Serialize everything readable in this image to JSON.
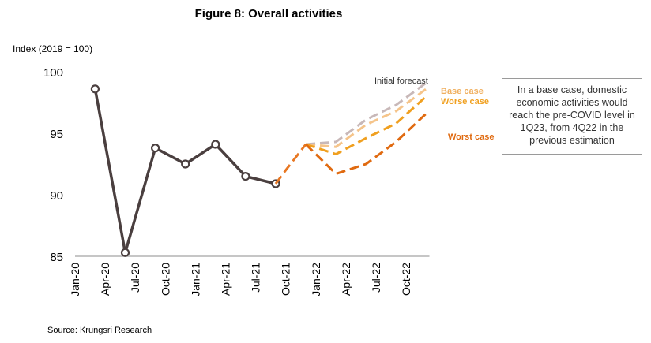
{
  "chart_data": {
    "type": "line",
    "title": "Figure 8: Overall activities",
    "ylabel": "Index (2019 = 100)",
    "ylim": [
      85,
      100
    ],
    "yticks": [
      85,
      90,
      95,
      100
    ],
    "xticks": [
      "Jan-20",
      "Apr-20",
      "Jul-20",
      "Oct-20",
      "Jan-21",
      "Apr-21",
      "Jul-21",
      "Oct-21",
      "Jan-22",
      "Apr-22",
      "Jul-22",
      "Oct-22"
    ],
    "grid": false,
    "series": [
      {
        "name": "",
        "style": "solid",
        "color": "#4a3f3f",
        "points": [
          [
            "Mar-20",
            98.6
          ],
          [
            "Jun-20",
            85.3
          ],
          [
            "Sep-20",
            93.8
          ],
          [
            "Dec-20",
            92.5
          ],
          [
            "Mar-21",
            94.1
          ],
          [
            "Jun-21",
            91.5
          ],
          [
            "Sep-21",
            90.9
          ]
        ]
      },
      {
        "name": "",
        "style": "dashed",
        "color": "#e87722",
        "points": [
          [
            "Sep-21",
            90.9
          ],
          [
            "Oct-21",
            92.0
          ],
          [
            "Dec-21",
            94.1
          ]
        ]
      },
      {
        "name": "Initial forecast",
        "style": "dashed",
        "color": "#c8b8b8",
        "points": [
          [
            "Dec-21",
            94.1
          ],
          [
            "Mar-22",
            94.3
          ],
          [
            "Jun-22",
            96.1
          ],
          [
            "Sep-22",
            97.3
          ],
          [
            "Dec-22",
            99.1
          ]
        ]
      },
      {
        "name": "Base case",
        "style": "dashed",
        "color": "#f5c48a",
        "points": [
          [
            "Dec-21",
            94.1
          ],
          [
            "Mar-22",
            93.9
          ],
          [
            "Jun-22",
            95.7
          ],
          [
            "Sep-22",
            96.8
          ],
          [
            "Dec-22",
            98.6
          ]
        ]
      },
      {
        "name": "Worse case",
        "style": "dashed",
        "color": "#f0a020",
        "points": [
          [
            "Dec-21",
            94.1
          ],
          [
            "Mar-22",
            93.3
          ],
          [
            "Jun-22",
            94.6
          ],
          [
            "Sep-22",
            95.8
          ],
          [
            "Dec-22",
            98.0
          ]
        ]
      },
      {
        "name": "Worst case",
        "style": "dashed",
        "color": "#e06a10",
        "points": [
          [
            "Dec-21",
            94.1
          ],
          [
            "Mar-22",
            91.7
          ],
          [
            "Jun-22",
            92.5
          ],
          [
            "Sep-22",
            94.3
          ],
          [
            "Dec-22",
            96.6
          ]
        ]
      }
    ]
  },
  "note": "In a base case, domestic economic activities would reach the pre-COVID level in 1Q23, from 4Q22 in the previous estimation",
  "source": "Source: Krungsri Research"
}
